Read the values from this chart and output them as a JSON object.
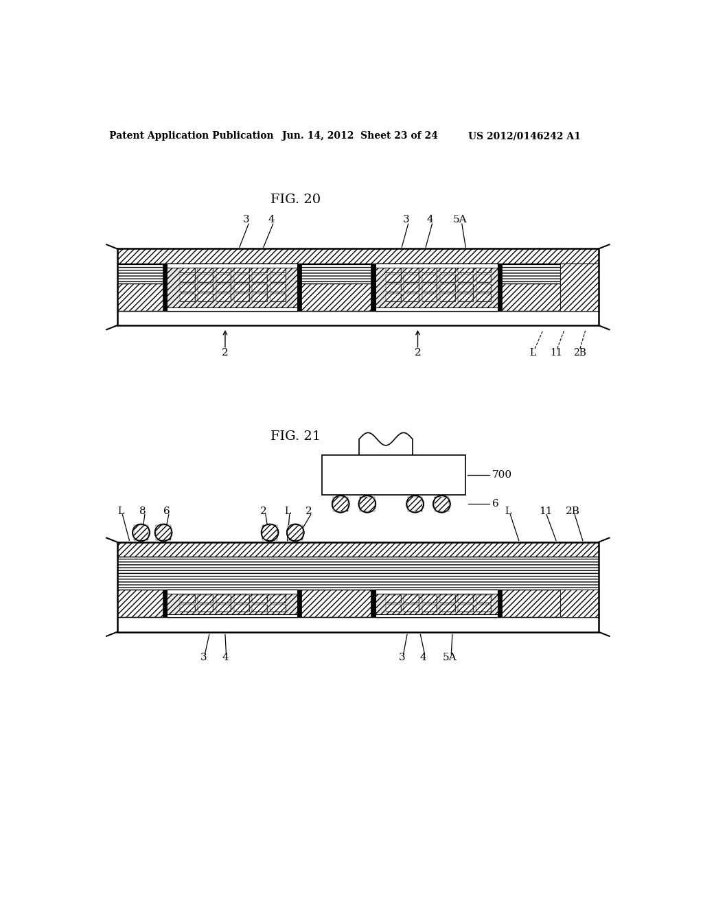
{
  "header_left": "Patent Application Publication",
  "header_center": "Jun. 14, 2012  Sheet 23 of 24",
  "header_right": "US 2012/0146242 A1",
  "fig20_label": "FIG. 20",
  "fig21_label": "FIG. 21",
  "bg_color": "#ffffff",
  "line_color": "#000000"
}
